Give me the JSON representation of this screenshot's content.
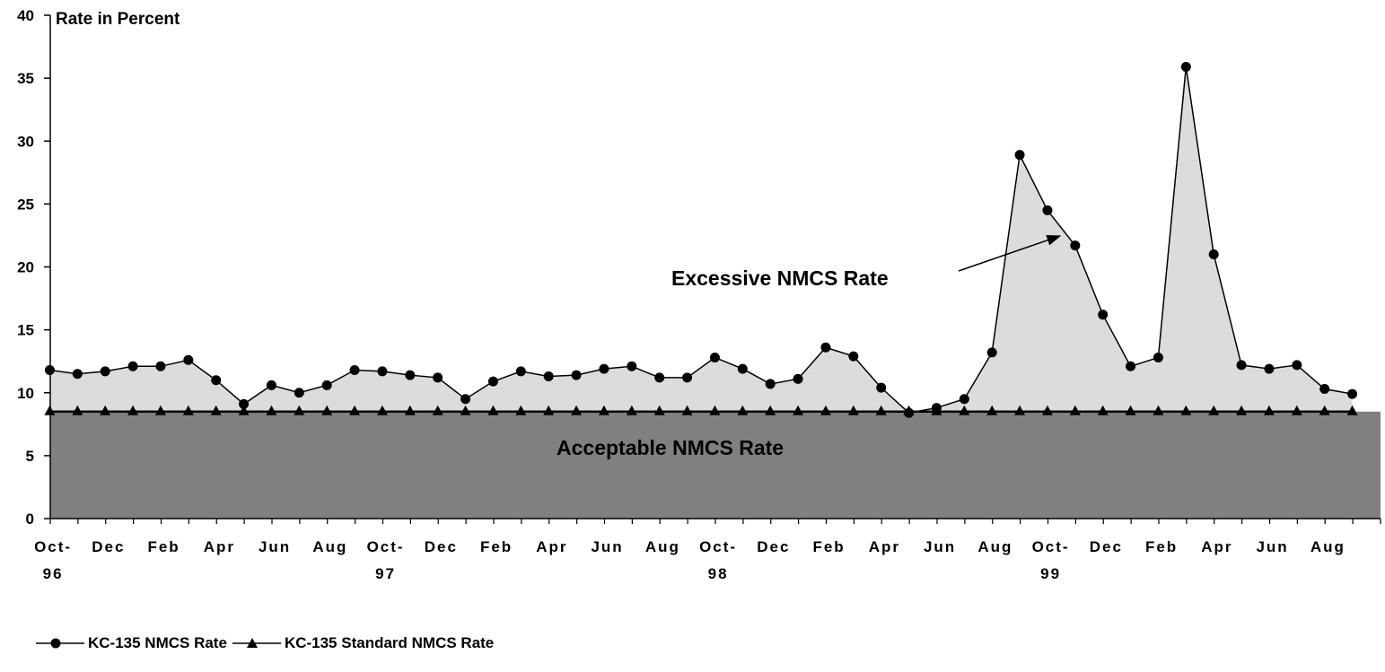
{
  "chart_data": {
    "type": "area",
    "title": "",
    "ylabel": "Rate in Percent",
    "xlabel": "",
    "ylim": [
      0,
      40
    ],
    "yticks": [
      0,
      5,
      10,
      15,
      20,
      25,
      30,
      35,
      40
    ],
    "grid": false,
    "legend_position": "bottom-left",
    "months": [
      "Oct 96",
      "Nov 96",
      "Dec 96",
      "Jan 97",
      "Feb 97",
      "Mar 97",
      "Apr 97",
      "May 97",
      "Jun 97",
      "Jul 97",
      "Aug 97",
      "Sep 97",
      "Oct 97",
      "Nov 97",
      "Dec 97",
      "Jan 98",
      "Feb 98",
      "Mar 98",
      "Apr 98",
      "May 98",
      "Jun 98",
      "Jul 98",
      "Aug 98",
      "Sep 98",
      "Oct 98",
      "Nov 98",
      "Dec 98",
      "Jan 99",
      "Feb 99",
      "Mar 99",
      "Apr 99",
      "May 99",
      "Jun 99",
      "Jul 99",
      "Aug 99",
      "Sep 99",
      "Oct 99",
      "Nov 99",
      "Dec 99",
      "Jan 00",
      "Feb 00",
      "Mar 00",
      "Apr 00",
      "May 00",
      "Jun 00",
      "Jul 00",
      "Aug 00",
      "Sep 00"
    ],
    "tick_labels": [
      {
        "index": 0,
        "line1": "Oct-",
        "line2": "96"
      },
      {
        "index": 2,
        "line1": "Dec",
        "line2": ""
      },
      {
        "index": 4,
        "line1": "Feb",
        "line2": ""
      },
      {
        "index": 6,
        "line1": "Apr",
        "line2": ""
      },
      {
        "index": 8,
        "line1": "Jun",
        "line2": ""
      },
      {
        "index": 10,
        "line1": "Aug",
        "line2": ""
      },
      {
        "index": 12,
        "line1": "Oct-",
        "line2": "97"
      },
      {
        "index": 14,
        "line1": "Dec",
        "line2": ""
      },
      {
        "index": 16,
        "line1": "Feb",
        "line2": ""
      },
      {
        "index": 18,
        "line1": "Apr",
        "line2": ""
      },
      {
        "index": 20,
        "line1": "Jun",
        "line2": ""
      },
      {
        "index": 22,
        "line1": "Aug",
        "line2": ""
      },
      {
        "index": 24,
        "line1": "Oct-",
        "line2": "98"
      },
      {
        "index": 26,
        "line1": "Dec",
        "line2": ""
      },
      {
        "index": 28,
        "line1": "Feb",
        "line2": ""
      },
      {
        "index": 30,
        "line1": "Apr",
        "line2": ""
      },
      {
        "index": 32,
        "line1": "Jun",
        "line2": ""
      },
      {
        "index": 34,
        "line1": "Aug",
        "line2": ""
      },
      {
        "index": 36,
        "line1": "Oct-",
        "line2": "99"
      },
      {
        "index": 38,
        "line1": "Dec",
        "line2": ""
      },
      {
        "index": 40,
        "line1": "Feb",
        "line2": ""
      },
      {
        "index": 42,
        "line1": "Apr",
        "line2": ""
      },
      {
        "index": 44,
        "line1": "Jun",
        "line2": ""
      },
      {
        "index": 46,
        "line1": "Aug",
        "line2": ""
      }
    ],
    "series": [
      {
        "name": "KC-135 NMCS Rate",
        "marker": "circle",
        "values": [
          11.8,
          11.5,
          11.7,
          12.1,
          12.1,
          12.6,
          11.0,
          9.1,
          10.6,
          10.0,
          10.6,
          11.8,
          11.7,
          11.4,
          11.2,
          9.5,
          10.9,
          11.7,
          11.3,
          11.4,
          11.9,
          12.1,
          11.2,
          11.2,
          12.8,
          11.9,
          10.7,
          11.1,
          13.6,
          12.9,
          10.4,
          8.4,
          8.8,
          9.5,
          13.2,
          28.9,
          24.5,
          21.7,
          16.2,
          12.1,
          12.8,
          35.9,
          21.0,
          12.2,
          11.9,
          12.2,
          10.3,
          9.9
        ]
      },
      {
        "name": "KC-135 Standard NMCS Rate",
        "marker": "triangle",
        "values": [
          8.5,
          8.5,
          8.5,
          8.5,
          8.5,
          8.5,
          8.5,
          8.5,
          8.5,
          8.5,
          8.5,
          8.5,
          8.5,
          8.5,
          8.5,
          8.5,
          8.5,
          8.5,
          8.5,
          8.5,
          8.5,
          8.5,
          8.5,
          8.5,
          8.5,
          8.5,
          8.5,
          8.5,
          8.5,
          8.5,
          8.5,
          8.5,
          8.5,
          8.5,
          8.5,
          8.5,
          8.5,
          8.5,
          8.5,
          8.5,
          8.5,
          8.5,
          8.5,
          8.5,
          8.5,
          8.5,
          8.5,
          8.5
        ]
      }
    ],
    "annotations": [
      {
        "text": "Excessive NMCS Rate",
        "arrow_to_index": 36.5,
        "arrow_to_value": 22.5
      },
      {
        "text": "Acceptable NMCS Rate"
      }
    ],
    "colors": {
      "excess_fill": "#dcdcdc",
      "acceptable_fill": "#808080",
      "line": "#000000"
    }
  }
}
